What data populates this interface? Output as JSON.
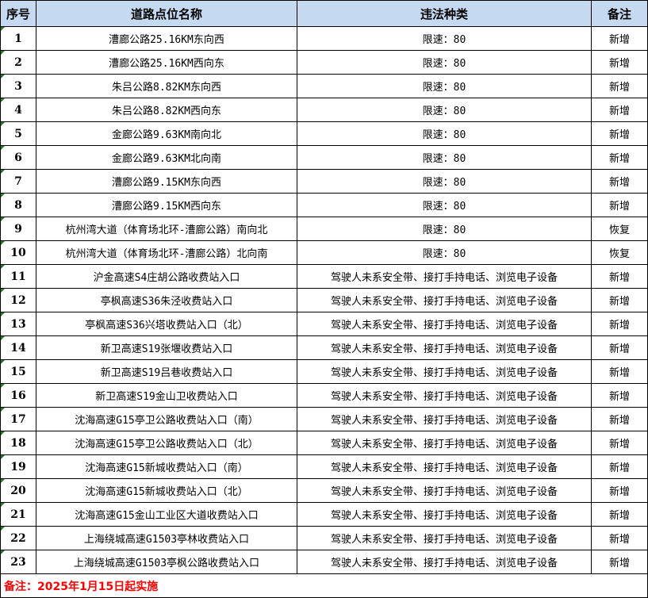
{
  "header": {
    "seq": "序号",
    "location": "道路点位名称",
    "violation": "违法种类",
    "remark": "备注"
  },
  "rows": [
    {
      "seq": "1",
      "location": "漕廊公路25.16KM东向西",
      "violation": "限速：80",
      "remark": "新增"
    },
    {
      "seq": "2",
      "location": "漕廊公路25.16KM西向东",
      "violation": "限速：80",
      "remark": "新增"
    },
    {
      "seq": "3",
      "location": "朱吕公路8.82KM东向西",
      "violation": "限速：80",
      "remark": "新增"
    },
    {
      "seq": "4",
      "location": "朱吕公路8.82KM西向东",
      "violation": "限速：80",
      "remark": "新增"
    },
    {
      "seq": "5",
      "location": "金廊公路9.63KM南向北",
      "violation": "限速：80",
      "remark": "新增"
    },
    {
      "seq": "6",
      "location": "金廊公路9.63KM北向南",
      "violation": "限速：80",
      "remark": "新增"
    },
    {
      "seq": "7",
      "location": "漕廊公路9.15KM东向西",
      "violation": "限速：80",
      "remark": "新增"
    },
    {
      "seq": "8",
      "location": "漕廊公路9.15KM西向东",
      "violation": "限速：80",
      "remark": "新增"
    },
    {
      "seq": "9",
      "location": "杭州湾大道（体育场北环-漕廊公路）南向北",
      "violation": "限速：80",
      "remark": "恢复"
    },
    {
      "seq": "10",
      "location": "杭州湾大道（体育场北环-漕廊公路）北向南",
      "violation": "限速：80",
      "remark": "恢复"
    },
    {
      "seq": "11",
      "location": "沪金高速S4庄胡公路收费站入口",
      "violation": "驾驶人未系安全带、接打手持电话、浏览电子设备",
      "remark": "新增"
    },
    {
      "seq": "12",
      "location": "亭枫高速S36朱泾收费站入口",
      "violation": "驾驶人未系安全带、接打手持电话、浏览电子设备",
      "remark": "新增"
    },
    {
      "seq": "13",
      "location": "亭枫高速S36兴塔收费站入口（北）",
      "violation": "驾驶人未系安全带、接打手持电话、浏览电子设备",
      "remark": "新增"
    },
    {
      "seq": "14",
      "location": "新卫高速S19张堰收费站入口",
      "violation": "驾驶人未系安全带、接打手持电话、浏览电子设备",
      "remark": "新增"
    },
    {
      "seq": "15",
      "location": "新卫高速S19吕巷收费站入口",
      "violation": "驾驶人未系安全带、接打手持电话、浏览电子设备",
      "remark": "新增"
    },
    {
      "seq": "16",
      "location": "新卫高速S19金山卫收费站入口",
      "violation": "驾驶人未系安全带、接打手持电话、浏览电子设备",
      "remark": "新增"
    },
    {
      "seq": "17",
      "location": "沈海高速G15亭卫公路收费站入口（南）",
      "violation": "驾驶人未系安全带、接打手持电话、浏览电子设备",
      "remark": "新增"
    },
    {
      "seq": "18",
      "location": "沈海高速G15亭卫公路收费站入口（北）",
      "violation": "驾驶人未系安全带、接打手持电话、浏览电子设备",
      "remark": "新增"
    },
    {
      "seq": "19",
      "location": "沈海高速G15新城收费站入口（南）",
      "violation": "驾驶人未系安全带、接打手持电话、浏览电子设备",
      "remark": "新增"
    },
    {
      "seq": "20",
      "location": "沈海高速G15新城收费站入口（北）",
      "violation": "驾驶人未系安全带、接打手持电话、浏览电子设备",
      "remark": "新增"
    },
    {
      "seq": "21",
      "location": "沈海高速G15金山工业区大道收费站入口",
      "violation": "驾驶人未系安全带、接打手持电话、浏览电子设备",
      "remark": "新增"
    },
    {
      "seq": "22",
      "location": "上海绕城高速G1503亭林收费站入口",
      "violation": "驾驶人未系安全带、接打手持电话、浏览电子设备",
      "remark": "新增"
    },
    {
      "seq": "23",
      "location": "上海绕城高速G1503亭枫公路收费站入口",
      "violation": "驾驶人未系安全带、接打手持电话、浏览电子设备",
      "remark": "新增"
    }
  ],
  "footer": {
    "note": "备注：2025年1月15日起实施"
  },
  "colors": {
    "header_bg": "#C5D9F1",
    "note_text": "#FF0000",
    "cell_marker": "#1E7B1E"
  }
}
